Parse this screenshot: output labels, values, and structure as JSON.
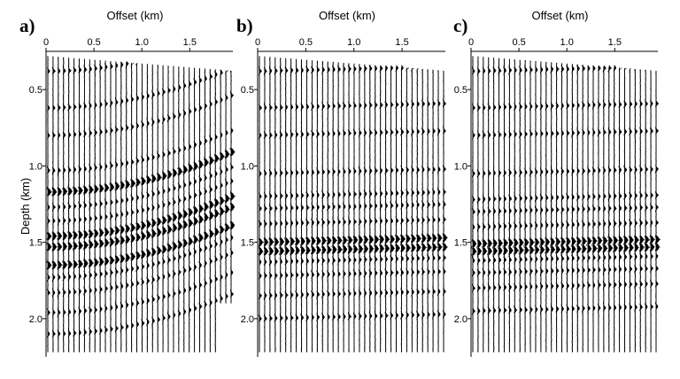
{
  "figure": {
    "y_axis_label": "Depth (km)",
    "panels": [
      {
        "id": "a",
        "letter": "a)",
        "x_axis_label": "Offset (km)",
        "x_ticks": [
          "0",
          "0.5",
          "1.0",
          "1.5"
        ],
        "y_ticks": [
          "0.5",
          "1.0",
          "1.5",
          "2.0"
        ]
      },
      {
        "id": "b",
        "letter": "b)",
        "x_axis_label": "Offset (km)",
        "x_ticks": [
          "0",
          "0.5",
          "1.0",
          "1.5"
        ],
        "y_ticks": [
          "0.5",
          "1.0",
          "1.5",
          "2.0"
        ]
      },
      {
        "id": "c",
        "letter": "c)",
        "x_axis_label": "Offset (km)",
        "x_ticks": [
          "0",
          "0.5",
          "1.0",
          "1.5"
        ],
        "y_ticks": [
          "0.5",
          "1.0",
          "1.5",
          "2.0"
        ]
      }
    ]
  },
  "chart_data": [
    {
      "type": "wiggle",
      "panel": "a",
      "xlabel": "Offset (km)",
      "ylabel": "Depth (km)",
      "xlim": [
        0,
        1.95
      ],
      "ylim": [
        2.25,
        0.25
      ],
      "x_ticks": [
        0,
        0.5,
        1.0,
        1.5
      ],
      "y_ticks": [
        0.5,
        1.0,
        1.5,
        2.0
      ],
      "trace_count": 36,
      "reflector_depths_km": [
        0.38,
        0.62,
        0.8,
        1.03,
        1.17,
        1.27,
        1.36,
        1.46,
        1.53,
        1.65,
        1.73,
        1.83,
        1.96,
        2.1
      ],
      "strongest_reflectors_km": [
        1.17,
        1.46,
        1.53,
        1.65
      ],
      "events_dip": "reflectors bend slightly upward toward far offsets"
    },
    {
      "type": "wiggle",
      "panel": "b",
      "xlabel": "Offset (km)",
      "xlim": [
        0,
        1.95
      ],
      "ylim": [
        2.25,
        0.25
      ],
      "x_ticks": [
        0,
        0.5,
        1.0,
        1.5
      ],
      "y_ticks": [
        0.5,
        1.0,
        1.5,
        2.0
      ],
      "trace_count": 36,
      "reflector_depths_km": [
        0.38,
        0.62,
        0.8,
        1.05,
        1.2,
        1.28,
        1.38,
        1.5,
        1.56,
        1.63,
        1.72,
        1.85,
        2.0
      ],
      "strongest_reflectors_km": [
        1.5,
        1.56
      ],
      "events_dip": "reflectors nearly flat across offset"
    },
    {
      "type": "wiggle",
      "panel": "c",
      "xlabel": "Offset (km)",
      "xlim": [
        0,
        1.95
      ],
      "ylim": [
        2.25,
        0.25
      ],
      "x_ticks": [
        0,
        0.5,
        1.0,
        1.5
      ],
      "y_ticks": [
        0.5,
        1.0,
        1.5,
        2.0
      ],
      "trace_count": 36,
      "reflector_depths_km": [
        0.38,
        0.62,
        0.8,
        1.05,
        1.22,
        1.3,
        1.4,
        1.51,
        1.56,
        1.62,
        1.7,
        1.8,
        1.95
      ],
      "strongest_reflectors_km": [
        1.51,
        1.56
      ],
      "events_dip": "reflectors nearly flat across offset"
    }
  ]
}
